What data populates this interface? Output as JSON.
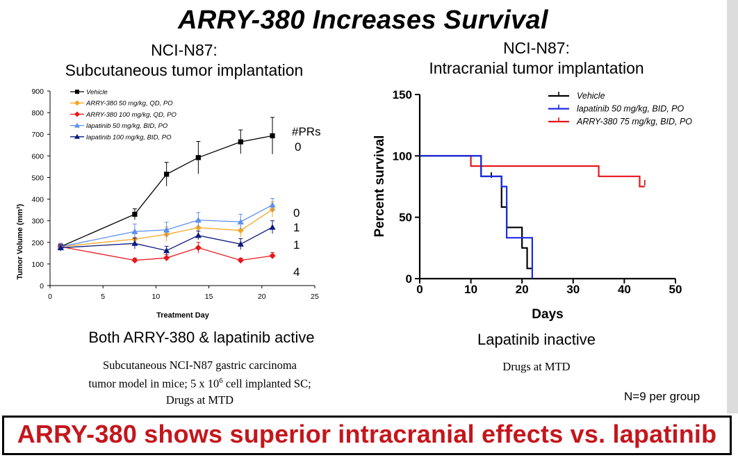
{
  "slide_title": "ARRY-380 Increases Survival",
  "left_panel": {
    "title_line1": "NCI-N87:",
    "title_line2": "Subcutaneous tumor implantation",
    "caption": "Both ARRY-380 & lapatinib active",
    "note_line1": "Subcutaneous NCI-N87 gastric carcinoma",
    "note_line2_pre": "tumor model in mice; 5 x 10",
    "note_line2_sup": "6",
    "note_line2_post": " cell implanted SC;",
    "note_line3": "Drugs at MTD",
    "prs_header": "#PRs",
    "prs": [
      "0",
      "0",
      "1",
      "1",
      "4"
    ]
  },
  "right_panel": {
    "title_line1": "NCI-N87:",
    "title_line2": "Intracranial tumor implantation",
    "caption": "Lapatinib inactive",
    "note": "Drugs at MTD",
    "n_label": "N=9 per group"
  },
  "conclusion": "ARRY-380 shows superior intracranial effects vs. lapatinib",
  "chart_data": [
    {
      "type": "line",
      "xlabel": "Treatment Day",
      "ylabel": "Tumor Volume (mm³)",
      "xlim": [
        0,
        25
      ],
      "ylim": [
        0,
        900
      ],
      "xticks": [
        0,
        5,
        10,
        15,
        20,
        25
      ],
      "yticks": [
        0,
        100,
        200,
        300,
        400,
        500,
        600,
        700,
        800,
        900
      ],
      "grid": false,
      "legend_position": "top-left",
      "x": [
        1,
        8,
        11,
        14,
        18,
        21
      ],
      "series": [
        {
          "name": "Vehicle",
          "color": "#000000",
          "marker": "square",
          "values": [
            180,
            330,
            515,
            592,
            665,
            693
          ],
          "errors": [
            15,
            25,
            55,
            75,
            55,
            85
          ]
        },
        {
          "name": "ARRY-380 50 mg/kg, QD, PO",
          "color": "#f5a623",
          "marker": "diamond",
          "values": [
            180,
            215,
            237,
            268,
            255,
            352
          ],
          "errors": [
            15,
            25,
            35,
            30,
            30,
            35
          ]
        },
        {
          "name": "ARRY-380 100 mg/kg, QD, PO",
          "color": "#e8161c",
          "marker": "diamond",
          "values": [
            180,
            117,
            128,
            175,
            117,
            138
          ],
          "errors": [
            15,
            10,
            15,
            25,
            10,
            15
          ]
        },
        {
          "name": "lapatinib 50 mg/kg, BID, PO",
          "color": "#5b8ff0",
          "marker": "triangle",
          "values": [
            180,
            250,
            258,
            303,
            295,
            373
          ],
          "errors": [
            15,
            35,
            35,
            35,
            35,
            30
          ]
        },
        {
          "name": "lapatinib 100 mg/kg, BID, PO",
          "color": "#0d1a7e",
          "marker": "triangle",
          "values": [
            175,
            195,
            162,
            232,
            192,
            270
          ],
          "errors": [
            15,
            25,
            20,
            20,
            25,
            30
          ]
        }
      ]
    },
    {
      "type": "line",
      "step": true,
      "xlabel": "Days",
      "ylabel": "Percent survival",
      "xlim": [
        0,
        50
      ],
      "ylim": [
        0,
        150
      ],
      "xticks": [
        0,
        10,
        20,
        30,
        40,
        50
      ],
      "yticks": [
        0,
        50,
        100,
        150
      ],
      "grid": false,
      "legend_position": "top-right",
      "series": [
        {
          "name": "Vehicle",
          "color": "#000000",
          "x": [
            0,
            12,
            12,
            16,
            16,
            17,
            17,
            20,
            20,
            21,
            21,
            22
          ],
          "y": [
            100,
            100,
            83.3,
            83.3,
            58.3,
            58.3,
            41.7,
            41.7,
            25,
            25,
            8.3,
            8.3
          ],
          "censored": [
            {
              "x": 14,
              "y": 83.3
            }
          ]
        },
        {
          "name": "lapatinib 50 mg/kg, BID, PO",
          "color": "#1a2be8",
          "x": [
            0,
            12,
            12,
            16,
            16,
            17,
            17,
            22,
            22
          ],
          "y": [
            100,
            100,
            83.3,
            83.3,
            75,
            75,
            33.3,
            33.3,
            0
          ],
          "censored": []
        },
        {
          "name": "ARRY-380 75 mg/kg, BID, PO",
          "color": "#e8161c",
          "x": [
            0,
            10,
            10,
            35,
            35,
            43,
            43,
            44
          ],
          "y": [
            100,
            100,
            91.7,
            91.7,
            83.3,
            83.3,
            75,
            75
          ],
          "censored": [
            {
              "x": 44,
              "y": 77
            }
          ]
        }
      ]
    }
  ]
}
